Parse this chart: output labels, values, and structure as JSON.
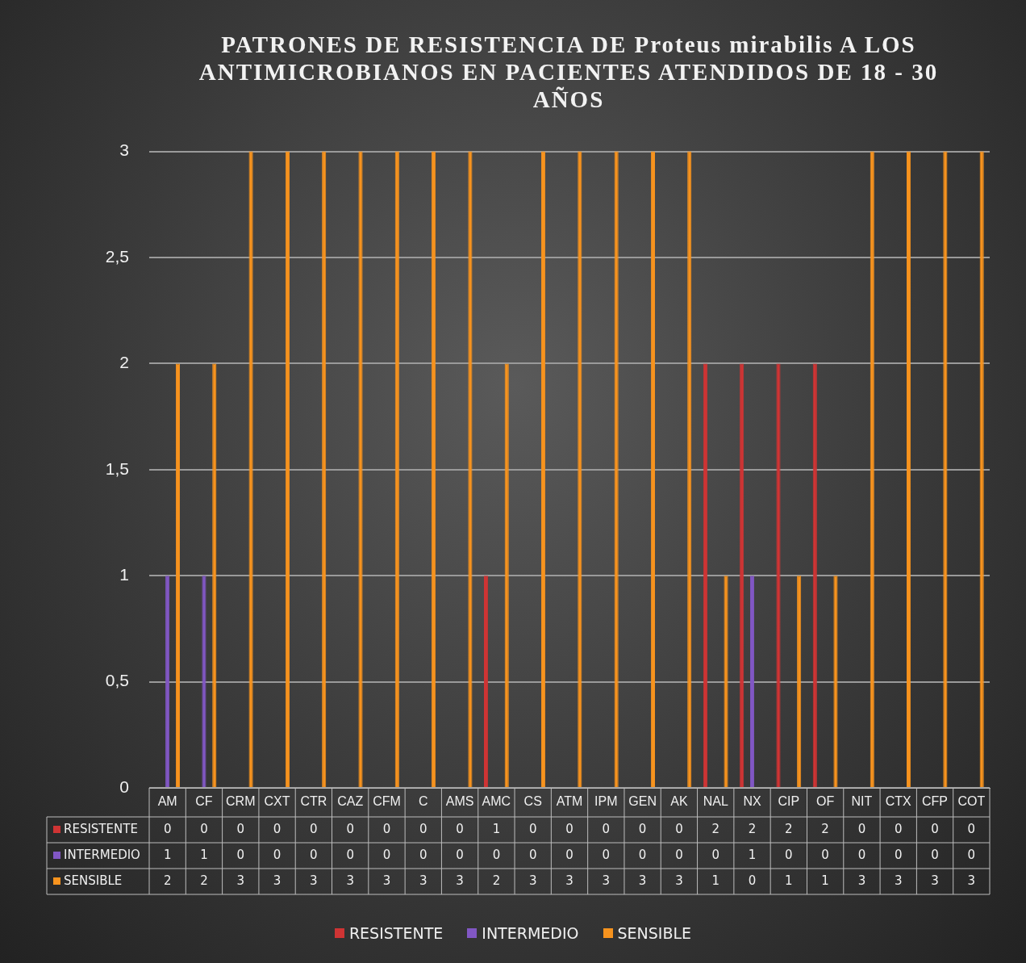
{
  "chart_data": {
    "type": "bar",
    "title": "PATRONES DE RESISTENCIA  DE Proteus mirabilis A LOS ANTIMICROBIANOS EN PACIENTES ATENDIDOS DE 18 - 30 AÑOS",
    "categories": [
      "AM",
      "CF",
      "CRM",
      "CXT",
      "CTR",
      "CAZ",
      "CFM",
      "C",
      "AMS",
      "AMC",
      "CS",
      "ATM",
      "IPM",
      "GEN",
      "AK",
      "NAL",
      "NX",
      "CIP",
      "OF",
      "NIT",
      "CTX",
      "CFP",
      "COT"
    ],
    "series": [
      {
        "name": "RESISTENTE",
        "color": "#cf3434",
        "values": [
          0,
          0,
          0,
          0,
          0,
          0,
          0,
          0,
          0,
          1,
          0,
          0,
          0,
          0,
          0,
          2,
          2,
          2,
          2,
          0,
          0,
          0,
          0
        ]
      },
      {
        "name": "INTERMEDIO",
        "color": "#8157c4",
        "values": [
          1,
          1,
          0,
          0,
          0,
          0,
          0,
          0,
          0,
          0,
          0,
          0,
          0,
          0,
          0,
          0,
          1,
          0,
          0,
          0,
          0,
          0,
          0
        ]
      },
      {
        "name": "SENSIBLE",
        "color": "#f7931e",
        "values": [
          2,
          2,
          3,
          3,
          3,
          3,
          3,
          3,
          3,
          2,
          3,
          3,
          3,
          3,
          3,
          1,
          0,
          1,
          1,
          3,
          3,
          3,
          3
        ]
      }
    ],
    "ylim": [
      0,
      3
    ],
    "yticks": [
      0,
      {
        "value": 0.5,
        "label": "0,5"
      },
      1,
      {
        "value": 1.5,
        "label": "1,5"
      },
      2,
      {
        "value": 2.5,
        "label": "2,5"
      },
      3
    ],
    "grid": "y",
    "legend": "bottom",
    "data_labels": true
  }
}
